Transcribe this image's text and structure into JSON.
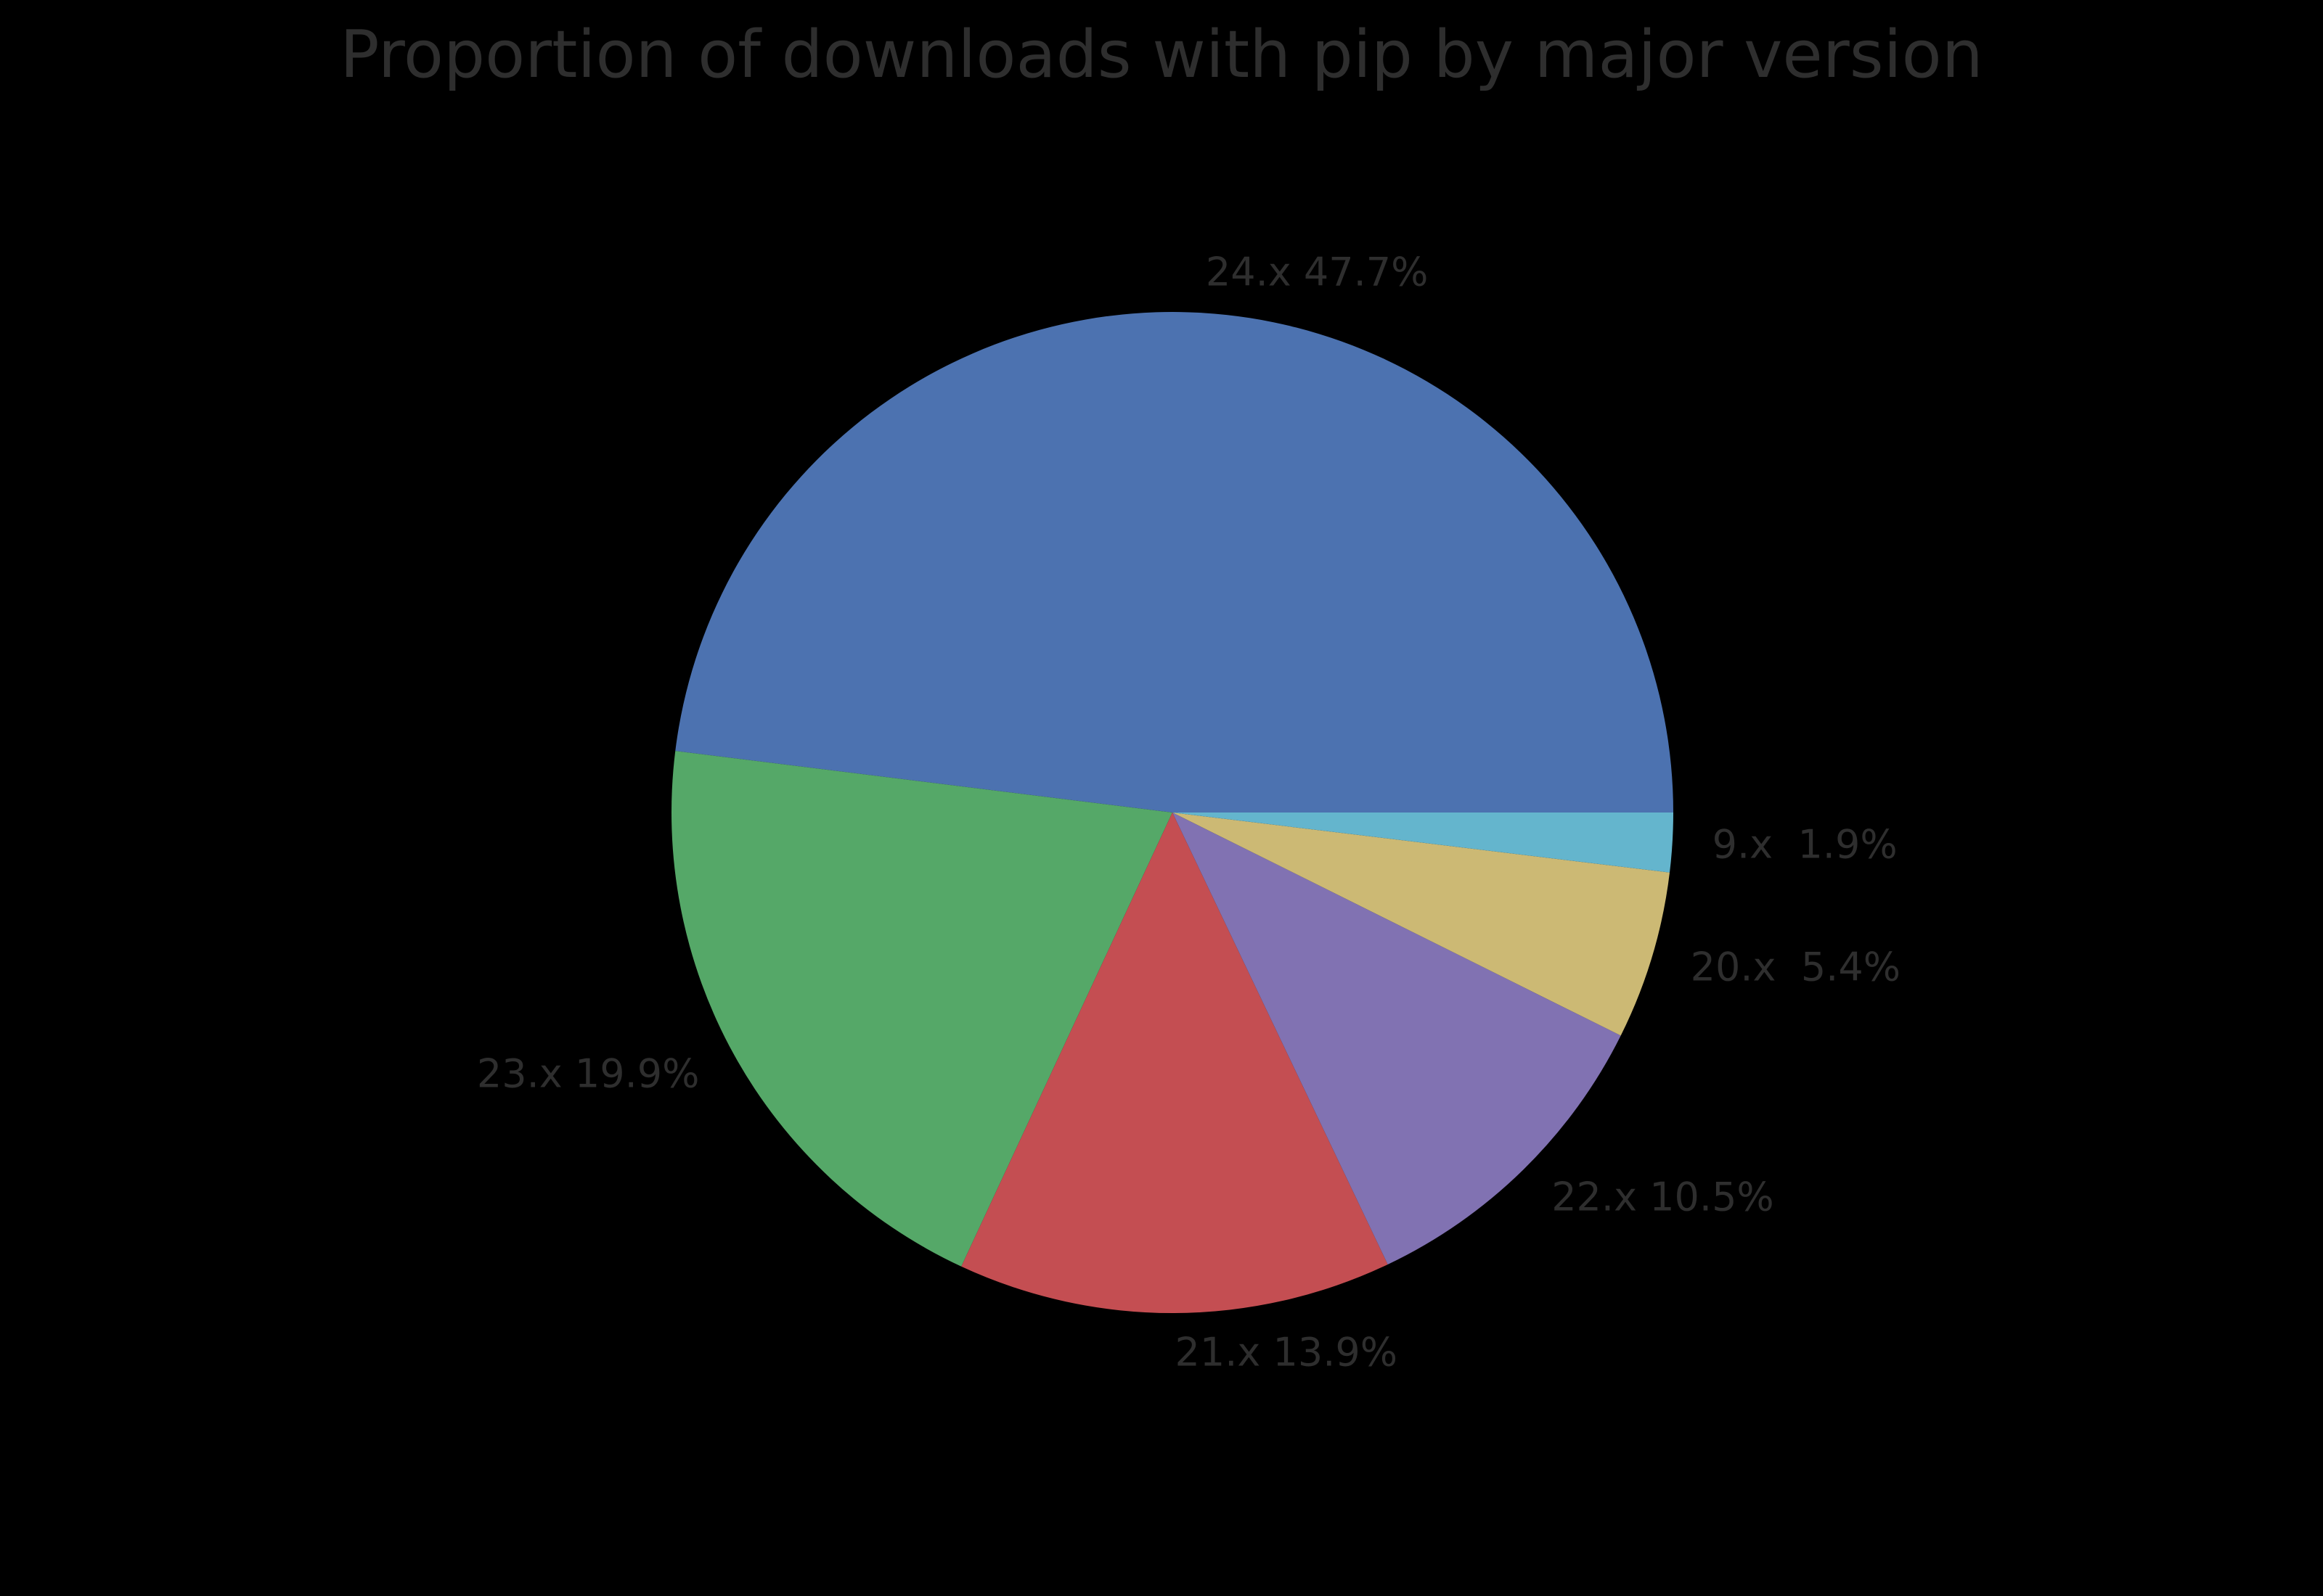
{
  "chart_data": {
    "type": "pie",
    "title": "Proportion of downloads with pip by major version",
    "unit": "%",
    "start_angle_deg": 0,
    "direction": "counterclockwise",
    "legend": "none",
    "background": "#000000",
    "text_color": "#2e2e2e",
    "slices": [
      {
        "label": "24.x",
        "value": 47.7,
        "display": "24.x 47.7%",
        "color": "#4c72b0"
      },
      {
        "label": "23.x",
        "value": 19.9,
        "display": "23.x 19.9%",
        "color": "#55a868"
      },
      {
        "label": "21.x",
        "value": 13.9,
        "display": "21.x 13.9%",
        "color": "#c44e52"
      },
      {
        "label": "22.x",
        "value": 10.5,
        "display": "22.x 10.5%",
        "color": "#8172b2"
      },
      {
        "label": "20.x",
        "value": 5.4,
        "display": "20.x  5.4%",
        "color": "#ccb974"
      },
      {
        "label": "9.x",
        "value": 1.9,
        "display": "9.x  1.9%",
        "color": "#64b5cd"
      }
    ]
  }
}
